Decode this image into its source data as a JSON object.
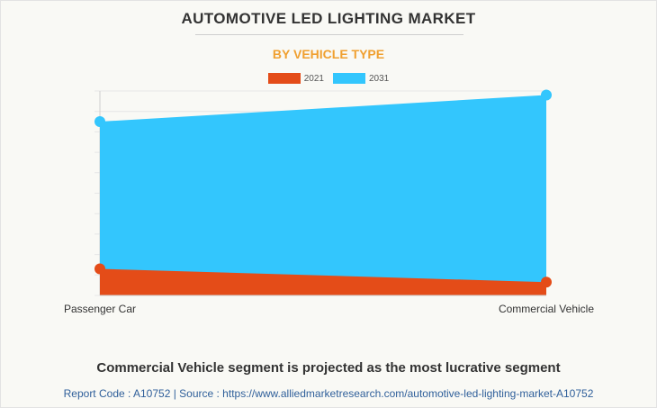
{
  "header": {
    "title": "AUTOMOTIVE LED LIGHTING MARKET",
    "subtitle": "BY VEHICLE TYPE"
  },
  "colors": {
    "series_2021": "#e44c18",
    "series_2031": "#33c6fd",
    "subtitle": "#f0a030"
  },
  "chart_data": {
    "type": "area",
    "title": "AUTOMOTIVE LED LIGHTING MARKET",
    "subtitle": "BY VEHICLE TYPE",
    "categories": [
      "Passenger Car",
      "Commercial Vehicle"
    ],
    "series": [
      {
        "name": "2021",
        "values": [
          13,
          6.5
        ]
      },
      {
        "name": "2031",
        "values": [
          85,
          98
        ]
      }
    ],
    "ylim": [
      0,
      100
    ],
    "ytick_step": 10,
    "grid": true,
    "legend": "top-center",
    "xlabel": "",
    "ylabel": ""
  },
  "footer": {
    "headline": "Commercial Vehicle segment is projected as the most lucrative segment",
    "source": "Report Code : A10752  |  Source : https://www.alliedmarketresearch.com/automotive-led-lighting-market-A10752"
  }
}
